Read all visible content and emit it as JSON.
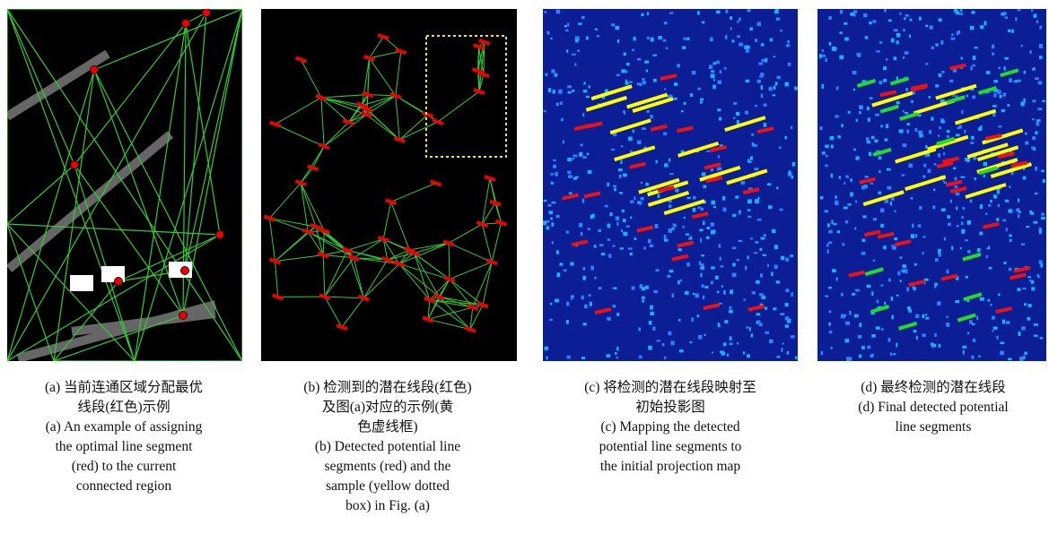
{
  "panels": [
    {
      "caption_zh": [
        "(a) 当前连通区域分配最优",
        "线段(红色)示例"
      ],
      "caption_en": [
        "(a) An example of assigning",
        "the optimal line segment",
        "(red) to the current",
        "connected region"
      ]
    },
    {
      "caption_zh": [
        "(b) 检测到的潜在线段(红色)",
        "及图(a)对应的示例(黄",
        "色虚线框)"
      ],
      "caption_en": [
        "(b) Detected potential line",
        "segments (red) and the",
        "sample (yellow dotted",
        "box) in Fig. (a)"
      ]
    },
    {
      "caption_zh": [
        "(c) 将检测的潜在线段映射至",
        "初始投影图"
      ],
      "caption_en": [
        "(c) Mapping the detected",
        "potential line segments to",
        "the initial projection map"
      ]
    },
    {
      "caption_zh": [
        "(d) 最终检测的潜在线段"
      ],
      "caption_en": [
        "(d) Final detected potential",
        "line segments"
      ]
    }
  ]
}
